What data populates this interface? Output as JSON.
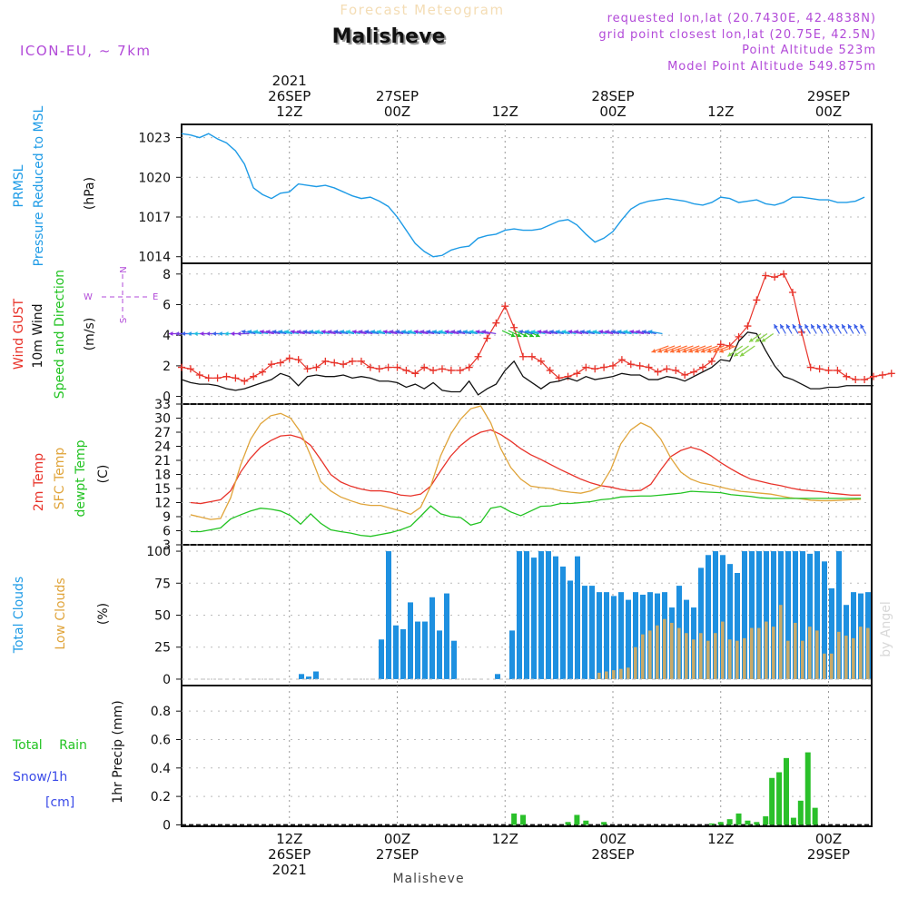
{
  "header": {
    "title_faded": "Forecast Meteogram",
    "location": "Malisheve",
    "model": "ICON-EU, ~ 7km",
    "requested": "requested lon,lat (20.7430E, 42.4838N)",
    "grid": "grid point closest lon,lat (20.75E, 42.5N)",
    "point_alt": "Point Altitude 523m",
    "model_alt": "Model Point Altitude 549.875m"
  },
  "footer": {
    "location": "Malisheve",
    "watermark": "by Angel"
  },
  "time_axis": {
    "top": [
      {
        "t": 12,
        "lines": [
          "2021",
          "26SEP",
          "12Z"
        ]
      },
      {
        "t": 24,
        "lines": [
          "27SEP",
          "00Z"
        ]
      },
      {
        "t": 36,
        "lines": [
          "12Z"
        ]
      },
      {
        "t": 48,
        "lines": [
          "28SEP",
          "00Z"
        ]
      },
      {
        "t": 60,
        "lines": [
          "12Z"
        ]
      },
      {
        "t": 72,
        "lines": [
          "29SEP",
          "00Z"
        ]
      }
    ],
    "bottom": [
      {
        "t": 12,
        "lines": [
          "12Z",
          "26SEP",
          "2021"
        ]
      },
      {
        "t": 24,
        "lines": [
          "00Z",
          "27SEP"
        ]
      },
      {
        "t": 36,
        "lines": [
          "12Z"
        ]
      },
      {
        "t": 48,
        "lines": [
          "00Z",
          "28SEP"
        ]
      },
      {
        "t": 60,
        "lines": [
          "12Z"
        ]
      },
      {
        "t": 72,
        "lines": [
          "00Z",
          "29SEP"
        ]
      }
    ]
  },
  "chart_data": [
    {
      "type": "line",
      "panel": "pressure",
      "labels": {
        "a": "PRMSL",
        "b": "Pressure Reduced to MSL",
        "unit": "(hPa)"
      },
      "yticks": [
        "1023",
        "1020",
        "1017",
        "1014"
      ],
      "ylim": [
        1013.5,
        1024
      ],
      "x_hours_from_26SEP00Z": [
        0,
        1,
        2,
        3,
        4,
        5,
        6,
        7,
        8,
        9,
        10,
        11,
        12,
        13,
        14,
        15,
        16,
        17,
        18,
        19,
        20,
        21,
        22,
        23,
        24,
        25,
        26,
        27,
        28,
        29,
        30,
        31,
        32,
        33,
        34,
        35,
        36,
        37,
        38,
        39,
        40,
        41,
        42,
        43,
        44,
        45,
        46,
        47,
        48,
        49,
        50,
        51,
        52,
        53,
        54,
        55,
        56,
        57,
        58,
        59,
        60,
        61,
        62,
        63,
        64,
        65,
        66,
        67,
        68,
        69,
        70,
        71,
        72,
        73,
        74,
        75,
        76
      ],
      "series": [
        {
          "color": "#1e9be6",
          "values": [
            1023.3,
            1023.2,
            1023.0,
            1023.3,
            1022.9,
            1022.6,
            1022.0,
            1021.0,
            1019.2,
            1018.7,
            1018.4,
            1018.8,
            1018.9,
            1019.5,
            1019.4,
            1019.3,
            1019.4,
            1019.2,
            1018.9,
            1018.6,
            1018.4,
            1018.5,
            1018.2,
            1017.8,
            1017.0,
            1016.0,
            1015.0,
            1014.4,
            1014.0,
            1014.1,
            1014.5,
            1014.7,
            1014.8,
            1015.4,
            1015.6,
            1015.7,
            1016.0,
            1016.1,
            1016.0,
            1016.0,
            1016.1,
            1016.4,
            1016.7,
            1016.8,
            1016.4,
            1015.7,
            1015.1,
            1015.4,
            1015.9,
            1016.8,
            1017.6,
            1018.0,
            1018.2,
            1018.3,
            1018.4,
            1018.3,
            1018.2,
            1018.0,
            1017.9,
            1018.1,
            1018.5,
            1018.4,
            1018.1,
            1018.2,
            1018.3,
            1018.0,
            1017.9,
            1018.1,
            1018.5,
            1018.5,
            1018.4,
            1018.3,
            1018.3,
            1018.1,
            1018.1,
            1018.2,
            1018.5
          ]
        }
      ]
    },
    {
      "type": "line",
      "panel": "wind",
      "labels": {
        "gust": "Wind GUST",
        "wind": "10m Wind",
        "dir": "Speed and Direction",
        "unit": "(m/s)",
        "compass": [
          "N",
          "W",
          "E",
          "S"
        ]
      },
      "yticks": [
        "8",
        "6",
        "4",
        "2",
        "0"
      ],
      "ylim": [
        -0.5,
        8.7
      ],
      "series": [
        {
          "name": "Wind GUST",
          "color": "#e8332a",
          "values": [
            1.9,
            1.8,
            1.4,
            1.2,
            1.2,
            1.3,
            1.2,
            1.0,
            1.3,
            1.6,
            2.1,
            2.2,
            2.5,
            2.4,
            1.8,
            1.9,
            2.3,
            2.2,
            2.1,
            2.3,
            2.3,
            1.9,
            1.8,
            1.9,
            1.9,
            1.7,
            1.5,
            1.9,
            1.7,
            1.8,
            1.7,
            1.7,
            1.9,
            2.6,
            3.8,
            4.8,
            5.9,
            4.5,
            2.6,
            2.6,
            2.3,
            1.7,
            1.2,
            1.3,
            1.5,
            1.9,
            1.8,
            1.9,
            2.0,
            2.4,
            2.1,
            2.0,
            1.9,
            1.6,
            1.8,
            1.7,
            1.4,
            1.6,
            1.9,
            2.3,
            3.4,
            3.3,
            3.9,
            4.6,
            6.3,
            7.9,
            7.8,
            8.0,
            6.8,
            4.2,
            1.9,
            1.8,
            1.7,
            1.7,
            1.3,
            1.1,
            1.1,
            1.3,
            1.4,
            1.5
          ]
        },
        {
          "name": "10m Wind",
          "color": "#111111",
          "values": [
            1.1,
            0.9,
            0.8,
            0.8,
            0.7,
            0.5,
            0.4,
            0.5,
            0.7,
            0.9,
            1.1,
            1.5,
            1.3,
            0.7,
            1.3,
            1.4,
            1.3,
            1.3,
            1.4,
            1.2,
            1.3,
            1.2,
            1.0,
            1.0,
            0.9,
            0.6,
            0.8,
            0.5,
            0.9,
            0.4,
            0.3,
            0.3,
            1.0,
            0.1,
            0.5,
            0.8,
            1.7,
            2.3,
            1.3,
            0.9,
            0.5,
            0.9,
            1.0,
            1.2,
            1.0,
            1.3,
            1.1,
            1.2,
            1.3,
            1.5,
            1.4,
            1.4,
            1.1,
            1.1,
            1.3,
            1.2,
            1.0,
            1.3,
            1.6,
            1.9,
            2.4,
            2.3,
            3.6,
            4.2,
            4.1,
            3.0,
            2.0,
            1.3,
            1.1,
            0.8,
            0.5,
            0.5,
            0.6,
            0.6,
            0.7,
            0.7,
            0.7,
            0.7
          ]
        }
      ]
    },
    {
      "type": "line",
      "panel": "temperature",
      "labels": {
        "t2m": "2m Temp",
        "sfc": "SFC Temp",
        "dew": "dewpt Temp",
        "unit": "(C)"
      },
      "yticks": [
        "33",
        "30",
        "27",
        "24",
        "21",
        "18",
        "15",
        "12",
        "9",
        "6",
        "3"
      ],
      "ylim": [
        3,
        33
      ],
      "series": [
        {
          "name": "2m Temp",
          "color": "#e8332a",
          "values": [
            12.0,
            11.8,
            12.2,
            12.6,
            14.5,
            18.5,
            21.5,
            23.8,
            25.2,
            26.2,
            26.4,
            25.8,
            24.2,
            21.2,
            18.0,
            16.4,
            15.5,
            14.9,
            14.5,
            14.5,
            14.2,
            13.6,
            13.4,
            13.8,
            15.5,
            18.8,
            21.9,
            24.2,
            25.9,
            27.0,
            27.5,
            26.5,
            25.1,
            23.5,
            22.2,
            21.2,
            20.1,
            19.0,
            18.0,
            17.0,
            16.2,
            15.6,
            15.3,
            14.8,
            14.5,
            14.6,
            15.9,
            19.0,
            21.8,
            23.1,
            23.8,
            23.2,
            22.0,
            20.5,
            19.2,
            18.0,
            17.0,
            16.5,
            16.0,
            15.6,
            15.1,
            14.7,
            14.5,
            14.3,
            14.0,
            13.8,
            13.6,
            13.6
          ]
        },
        {
          "name": "SFC Temp",
          "color": "#e0a43a",
          "values": [
            9.4,
            8.9,
            8.4,
            8.6,
            13.0,
            20.0,
            25.5,
            28.8,
            30.5,
            31.0,
            30.0,
            27.0,
            22.0,
            16.5,
            14.5,
            13.2,
            12.4,
            11.7,
            11.4,
            11.4,
            10.8,
            10.2,
            9.5,
            11.0,
            15.5,
            22.0,
            26.6,
            29.8,
            32.0,
            32.6,
            29.0,
            23.5,
            19.5,
            17.0,
            15.5,
            15.2,
            15.0,
            14.5,
            14.2,
            14.0,
            14.5,
            15.5,
            19.0,
            24.5,
            27.5,
            29.0,
            28.0,
            25.5,
            21.5,
            18.5,
            17.0,
            16.2,
            15.8,
            15.3,
            14.8,
            14.4,
            14.2,
            14.0,
            13.8,
            13.4,
            13.0,
            12.8,
            12.5,
            12.4,
            12.4,
            12.5,
            12.6,
            12.7
          ]
        },
        {
          "name": "dewpt Temp",
          "color": "#22c322",
          "values": [
            5.8,
            5.8,
            6.2,
            6.6,
            8.5,
            9.4,
            10.2,
            10.8,
            10.6,
            10.2,
            9.2,
            7.4,
            9.6,
            7.6,
            6.2,
            5.8,
            5.5,
            5.0,
            4.8,
            5.2,
            5.6,
            6.2,
            7.0,
            9.1,
            11.3,
            9.6,
            9.0,
            8.8,
            7.2,
            7.8,
            10.8,
            11.2,
            10.0,
            9.2,
            10.2,
            11.2,
            11.3,
            11.8,
            11.8,
            12.0,
            12.2,
            12.6,
            12.8,
            13.2,
            13.3,
            13.4,
            13.4,
            13.6,
            13.8,
            14.0,
            14.4,
            14.3,
            14.2,
            14.1,
            13.7,
            13.5,
            13.3,
            13.0,
            12.9,
            12.9,
            12.9,
            12.9,
            12.9,
            12.9,
            12.9,
            12.9,
            12.9,
            12.9
          ]
        }
      ]
    },
    {
      "type": "bar",
      "panel": "clouds",
      "labels": {
        "total": "Total Clouds",
        "low": "Low Clouds",
        "unit": "(%)"
      },
      "yticks": [
        "100",
        "75",
        "50",
        "25",
        "0"
      ],
      "ylim": [
        -5,
        105
      ],
      "series": [
        {
          "name": "Total Clouds",
          "color": "#1e90e0",
          "values": [
            0,
            0,
            0,
            0,
            0,
            0,
            0,
            0,
            0,
            0,
            0,
            0,
            0,
            0,
            0,
            0,
            4,
            2,
            6,
            0,
            0,
            0,
            0,
            0,
            0,
            0,
            0,
            31,
            100,
            42,
            39,
            60,
            45,
            45,
            64,
            38,
            67,
            30,
            0,
            0,
            0,
            0,
            0,
            4,
            0,
            38,
            100,
            100,
            95,
            100,
            100,
            96,
            88,
            77,
            96,
            73,
            73,
            68,
            68,
            65,
            68,
            62,
            68,
            66,
            68,
            67,
            68,
            56,
            73,
            62,
            56,
            87,
            97,
            100,
            97,
            90,
            83,
            100,
            100,
            100,
            100,
            100,
            100,
            100,
            100,
            100,
            98,
            100,
            92,
            71,
            100,
            58,
            68,
            67,
            68
          ]
        },
        {
          "name": "Low Clouds",
          "color": "#c8a968",
          "values": [
            0,
            0,
            0,
            0,
            0,
            0,
            0,
            0,
            0,
            0,
            0,
            0,
            0,
            0,
            0,
            0,
            0,
            0,
            0,
            0,
            0,
            0,
            0,
            0,
            0,
            0,
            0,
            0,
            0,
            0,
            0,
            0,
            0,
            0,
            0,
            0,
            0,
            0,
            0,
            0,
            0,
            0,
            0,
            0,
            0,
            0,
            0,
            0,
            0,
            0,
            0,
            0,
            0,
            0,
            0,
            0,
            0,
            5,
            6,
            7,
            8,
            9,
            25,
            35,
            38,
            42,
            47,
            44,
            40,
            36,
            31,
            36,
            30,
            36,
            45,
            31,
            30,
            32,
            40,
            40,
            45,
            41,
            58,
            30,
            44,
            30,
            41,
            38,
            20,
            20,
            37,
            34,
            32,
            41,
            40
          ]
        }
      ]
    },
    {
      "type": "bar",
      "panel": "precip",
      "labels": {
        "rain": "Total Rain",
        "snow": "Snow/1h",
        "cm": "[cm]",
        "unit": "1hr Precip (mm)"
      },
      "yticks": [
        "0.8",
        "0.6",
        "0.4",
        "0.2",
        "0"
      ],
      "ylim": [
        -0.01,
        0.98
      ],
      "series": [
        {
          "name": "Total Rain",
          "color": "#2ac02a",
          "values": [
            [
              37.0,
              0.08
            ],
            [
              38.0,
              0.07
            ],
            [
              43.0,
              0.02
            ],
            [
              44.0,
              0.07
            ],
            [
              45.0,
              0.03
            ],
            [
              47.0,
              0.02
            ],
            [
              59.0,
              0.01
            ],
            [
              60.0,
              0.02
            ],
            [
              61.0,
              0.04
            ],
            [
              62.0,
              0.08
            ],
            [
              63.0,
              0.03
            ],
            [
              64.0,
              0.02
            ],
            [
              65.0,
              0.06
            ],
            [
              65.7,
              0.33
            ],
            [
              66.5,
              0.37
            ],
            [
              67.3,
              0.47
            ],
            [
              68.1,
              0.05
            ],
            [
              68.9,
              0.17
            ],
            [
              69.7,
              0.51
            ],
            [
              70.5,
              0.12
            ]
          ]
        }
      ]
    }
  ]
}
